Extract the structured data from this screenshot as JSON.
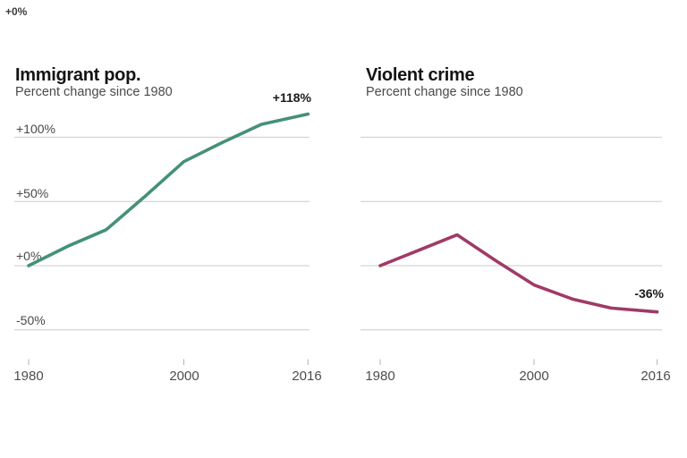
{
  "background": "#ffffff",
  "stray_label": {
    "text": "+0%"
  },
  "chart_data": [
    {
      "type": "line",
      "title": "Immigrant pop.",
      "subtitle": "Percent change since 1980",
      "series_name": "immigrant-population-pct-change",
      "x": [
        1980,
        1985,
        1990,
        1995,
        2000,
        2005,
        2010,
        2016
      ],
      "values": [
        0,
        15,
        28,
        54,
        81,
        96,
        110,
        118
      ],
      "end_annotation": "+118%",
      "line_color": "#459078",
      "xlim": [
        1980,
        2016
      ],
      "ylim": [
        -62,
        135
      ],
      "grid": true,
      "gridline_values": [
        100,
        50,
        0,
        -50
      ],
      "ytick_labels": [
        "+100%",
        "+50%",
        "+0%",
        "-50%"
      ],
      "xtick_years": [
        1980,
        2000,
        2016
      ],
      "xtick_labels": [
        "1980",
        "2000",
        "2016"
      ],
      "legend": "none"
    },
    {
      "type": "line",
      "title": "Violent crime",
      "subtitle": "Percent change since 1980",
      "series_name": "violent-crime-pct-change",
      "x": [
        1980,
        1985,
        1990,
        1995,
        2000,
        2005,
        2010,
        2016
      ],
      "values": [
        0,
        12,
        24,
        4,
        -15,
        -26,
        -33,
        -36
      ],
      "end_annotation": "-36%",
      "line_color": "#a03a66",
      "xlim": [
        1980,
        2016
      ],
      "ylim": [
        -62,
        135
      ],
      "grid": true,
      "gridline_values": [
        100,
        50,
        0,
        -50
      ],
      "ytick_labels": [],
      "xtick_years": [
        1980,
        2000,
        2016
      ],
      "xtick_labels": [
        "1980",
        "2000",
        "2016"
      ],
      "legend": "none"
    }
  ],
  "colors": {
    "gridline": "#cccccc",
    "tick": "#b3b3b3",
    "title": "#141414",
    "subtitle": "#4a4a4a",
    "axis_label": "#484848",
    "annotation": "#1a1a1a"
  }
}
